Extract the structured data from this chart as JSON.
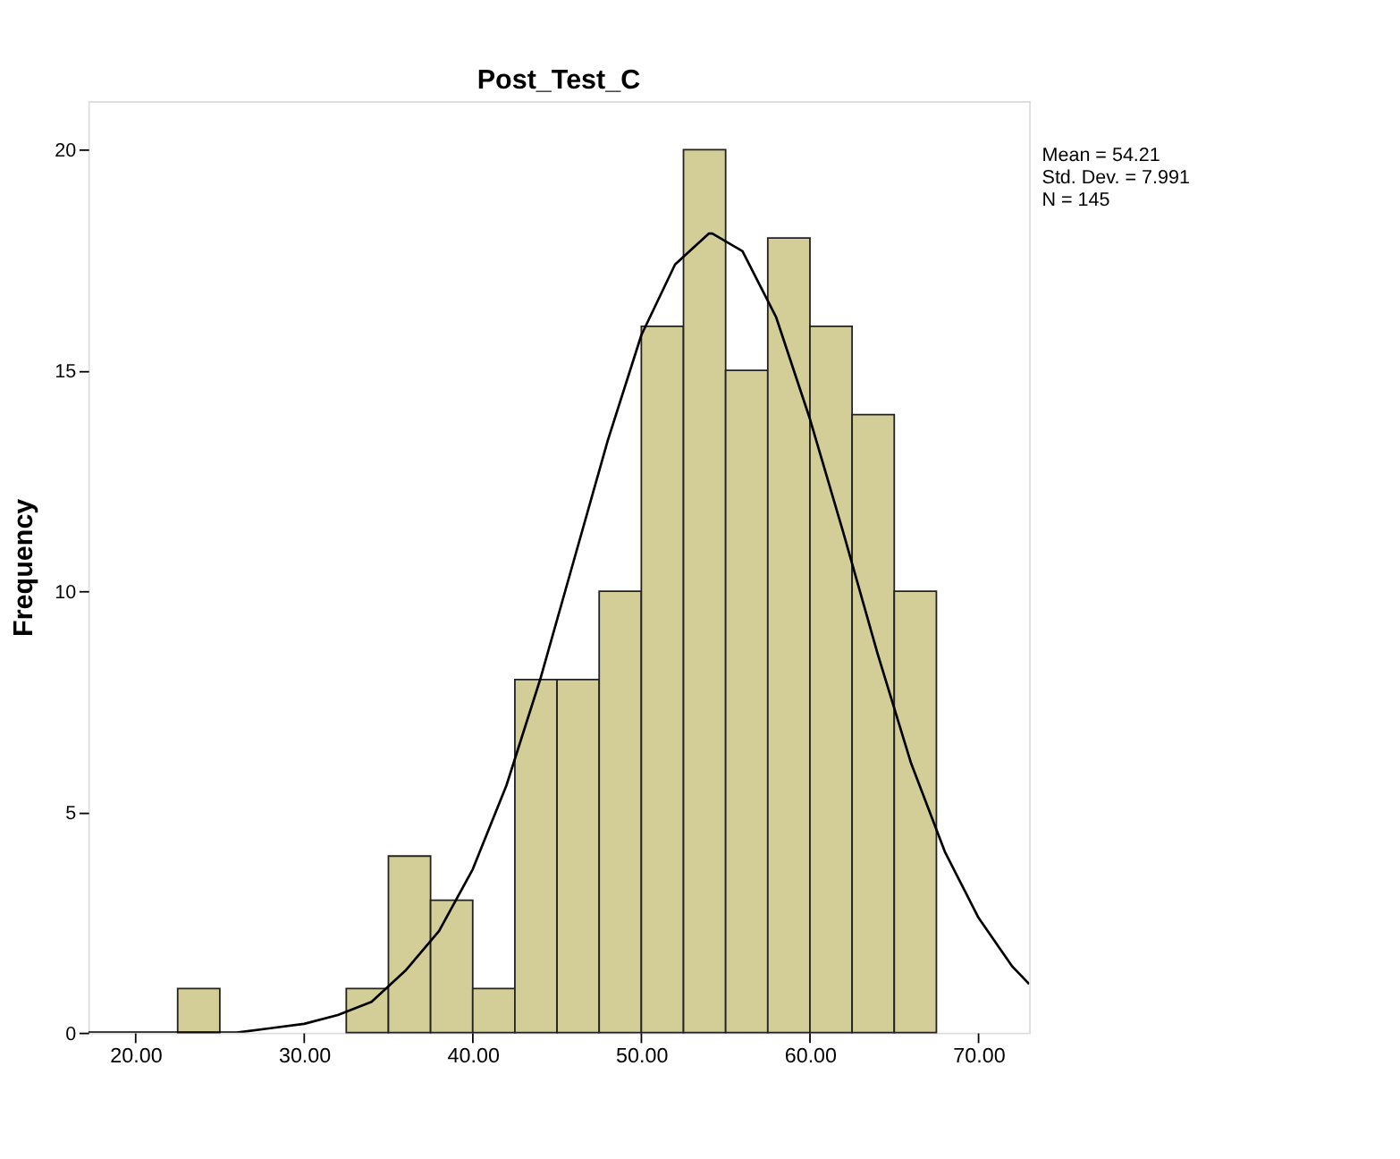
{
  "chart_data": {
    "type": "histogram",
    "title": "Post_Test_C",
    "ylabel": "Frequency",
    "bins": [
      22.5,
      25,
      27.5,
      30,
      32.5,
      35,
      37.5,
      40,
      42.5,
      45,
      47.5,
      50,
      52.5,
      55,
      57.5,
      60,
      62.5,
      65,
      67.5
    ],
    "values": [
      1,
      0,
      0,
      0,
      1,
      4,
      3,
      1,
      8,
      8,
      10,
      16,
      20,
      15,
      18,
      16,
      14,
      10
    ],
    "color": "#d3ce97",
    "series": [
      {
        "type": "line",
        "color": "#000000",
        "x": [
          17.2,
          20,
          22,
          24,
          26,
          28,
          30,
          32,
          34,
          36,
          38,
          40,
          42,
          44,
          46,
          48,
          50,
          52,
          54,
          54.21,
          56,
          58,
          60,
          62,
          64,
          66,
          68,
          70,
          72,
          73
        ],
        "values": [
          0.0,
          0.0,
          0.0,
          0.0,
          0.0,
          0.1,
          0.2,
          0.4,
          0.7,
          1.4,
          2.3,
          3.7,
          5.6,
          8.0,
          10.7,
          13.4,
          15.8,
          17.4,
          18.1,
          18.1,
          17.7,
          16.2,
          13.9,
          11.3,
          8.6,
          6.1,
          4.1,
          2.6,
          1.5,
          1.1
        ]
      }
    ],
    "xlim": [
      17.2,
      73
    ],
    "xticks": [
      {
        "value": 20,
        "label": "20.00"
      },
      {
        "value": 30,
        "label": "30.00"
      },
      {
        "value": 40,
        "label": "40.00"
      },
      {
        "value": 50,
        "label": "50.00"
      },
      {
        "value": 60,
        "label": "60.00"
      },
      {
        "value": 70,
        "label": "70.00"
      }
    ],
    "ylim": [
      0,
      21.1
    ],
    "yticks": [
      0,
      5,
      10,
      15,
      20
    ],
    "grid": false,
    "legend": false,
    "annotations": [
      "Mean = 54.21",
      "Std. Dev. = 7.991",
      "N = 145"
    ]
  }
}
